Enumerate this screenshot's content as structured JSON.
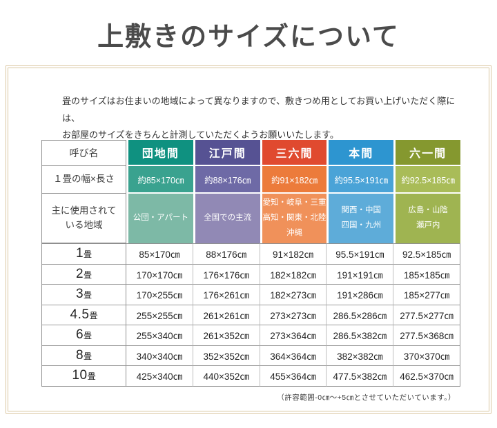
{
  "title": "上敷きのサイズについて",
  "intro": "畳のサイズはお住まいの地域によって異なりますので、敷きつめ用としてお買い上げいただく際には、\nお部屋のサイズをきちんと計測していただくようお願いいたします。",
  "table": {
    "corner_label": "呼び名",
    "width_row_label": "１畳の幅×長さ",
    "region_row_label": "主に使用されて\nいる地域",
    "columns": [
      {
        "name": "団地間",
        "width_length": "約85×170㎝",
        "regions": "公団・アパート",
        "colors": {
          "header": "#0f9180",
          "mid": "#3aa28f",
          "light": "#7db9a6"
        }
      },
      {
        "name": "江戸間",
        "width_length": "約88×176㎝",
        "regions": "全国での主流",
        "colors": {
          "header": "#565293",
          "mid": "#6e6aa6",
          "light": "#9189b5"
        }
      },
      {
        "name": "三六間",
        "width_length": "約91×182㎝",
        "regions": "愛知・岐阜・三重\n高知・関東・北陸\n沖縄",
        "colors": {
          "header": "#e04a2f",
          "mid": "#ec7b3b",
          "light": "#f0915a"
        }
      },
      {
        "name": "本間",
        "width_length": "約95.5×191㎝",
        "regions": "関西・中国\n四国・九州",
        "colors": {
          "header": "#2d95d0",
          "mid": "#4aa3d7",
          "light": "#5eacd9"
        }
      },
      {
        "name": "六一間",
        "width_length": "約92.5×185㎝",
        "regions": "広島・山陰\n瀬戸内",
        "colors": {
          "header": "#85982f",
          "mid": "#a9bc58",
          "light": "#9fb451"
        }
      }
    ],
    "size_rows": [
      {
        "num": "1",
        "unit": "畳",
        "values": [
          "85×170㎝",
          "88×176㎝",
          "91×182㎝",
          "95.5×191㎝",
          "92.5×185㎝"
        ]
      },
      {
        "num": "2",
        "unit": "畳",
        "values": [
          "170×170㎝",
          "176×176㎝",
          "182×182㎝",
          "191×191㎝",
          "185×185㎝"
        ]
      },
      {
        "num": "3",
        "unit": "畳",
        "values": [
          "170×255㎝",
          "176×261㎝",
          "182×273㎝",
          "191×286㎝",
          "185×277㎝"
        ]
      },
      {
        "num": "4.5",
        "unit": "畳",
        "values": [
          "255×255㎝",
          "261×261㎝",
          "273×273㎝",
          "286.5×286㎝",
          "277.5×277㎝"
        ]
      },
      {
        "num": "6",
        "unit": "畳",
        "values": [
          "255×340㎝",
          "261×352㎝",
          "273×364㎝",
          "286.5×382㎝",
          "277.5×368㎝"
        ]
      },
      {
        "num": "8",
        "unit": "畳",
        "values": [
          "340×340㎝",
          "352×352㎝",
          "364×364㎝",
          "382×382㎝",
          "370×370㎝"
        ]
      },
      {
        "num": "10",
        "unit": "畳",
        "values": [
          "425×340㎝",
          "440×352㎝",
          "455×364㎝",
          "477.5×382㎝",
          "462.5×370㎝"
        ]
      }
    ]
  },
  "footnote": "（許容範囲-0㎝〜+5㎝とさせていただいています。）"
}
